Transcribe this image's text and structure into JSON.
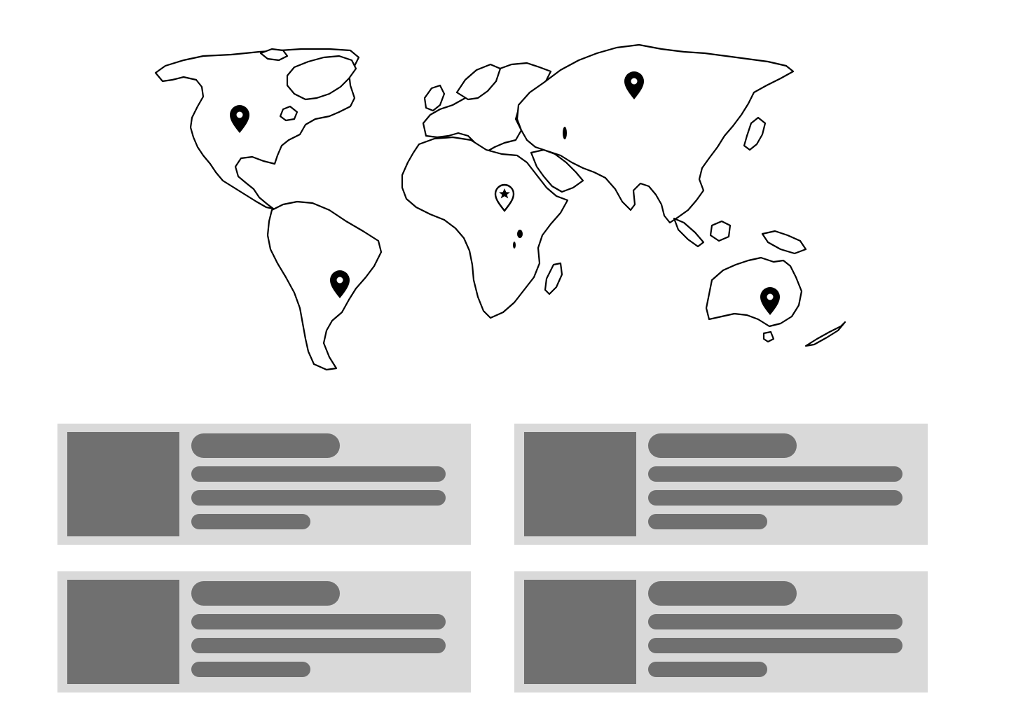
{
  "map": {
    "pins": [
      {
        "region": "north-america",
        "style": "filled"
      },
      {
        "region": "south-america",
        "style": "filled"
      },
      {
        "region": "africa",
        "style": "outline-star"
      },
      {
        "region": "russia",
        "style": "filled"
      },
      {
        "region": "australia",
        "style": "filled"
      }
    ]
  },
  "cards": [
    {
      "kind": "placeholder"
    },
    {
      "kind": "placeholder"
    },
    {
      "kind": "placeholder"
    },
    {
      "kind": "placeholder"
    }
  ],
  "colors": {
    "card_background": "#d9d9d9",
    "placeholder_fill": "#707070",
    "map_outline": "#000000",
    "page_background": "#ffffff"
  }
}
